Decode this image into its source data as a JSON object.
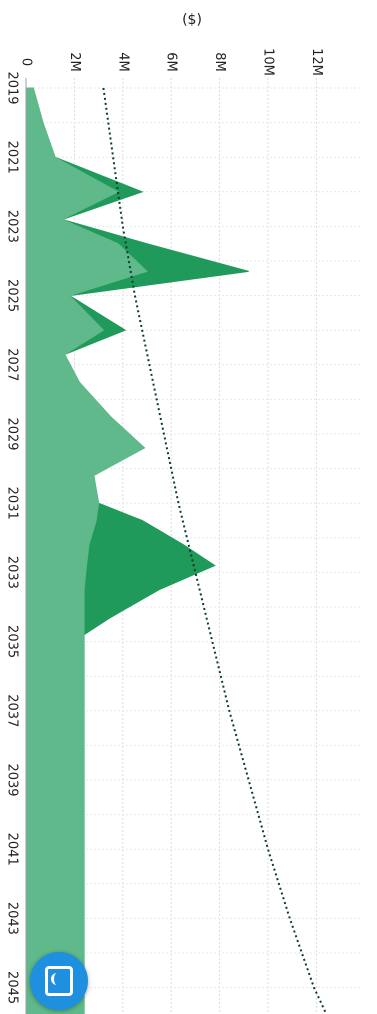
{
  "chart_data": {
    "type": "area",
    "orientation": "rotated-90",
    "ylabel": "($)",
    "x_ticks": [
      "2019",
      "2021",
      "2023",
      "2025",
      "2027",
      "2029",
      "2031",
      "2033",
      "2035",
      "2037",
      "2039",
      "2041",
      "2043",
      "2045"
    ],
    "y_ticks": [
      "0",
      "2M",
      "4M",
      "6M",
      "8M",
      "10M",
      "12M"
    ],
    "xlim": [
      2019,
      2046.5
    ],
    "ylim": [
      0,
      13000000
    ],
    "grid": true,
    "series": [
      {
        "kind": "area-dark",
        "color": "#1f9a5a",
        "x": [
          2019,
          2020,
          2021,
          2022,
          2022.8,
          2023.5,
          2024.3,
          2025,
          2026,
          2026.7,
          2027.5,
          2028.5,
          2029.4,
          2030.2,
          2031,
          2031.5,
          2032.2,
          2032.8,
          2033.5,
          2034.3,
          2034.8,
          2035.5,
          2046.5
        ],
        "y": [
          300000,
          700000,
          1200000,
          4800000,
          1500000,
          5000000,
          9200000,
          1800000,
          4100000,
          1600000,
          2200000,
          3400000,
          4700000,
          2800000,
          3000000,
          4800000,
          6500000,
          7800000,
          5500000,
          3500000,
          2400000,
          2400000,
          2400000
        ]
      },
      {
        "kind": "area-light",
        "color": "#5fb98a",
        "x": [
          2019,
          2020,
          2021,
          2022,
          2022.8,
          2023.5,
          2024.3,
          2025,
          2026,
          2026.7,
          2027.5,
          2028.5,
          2029.4,
          2030.2,
          2031,
          2031.5,
          2032.2,
          2032.8,
          2033.5,
          2034.3,
          2034.8,
          2035.5,
          2046.5
        ],
        "y": [
          300000,
          700000,
          1200000,
          3800000,
          1500000,
          3800000,
          5000000,
          1800000,
          3200000,
          1600000,
          2200000,
          3500000,
          4900000,
          2800000,
          3000000,
          2900000,
          2600000,
          2500000,
          2400000,
          2400000,
          2400000,
          2400000,
          2400000
        ]
      },
      {
        "kind": "trend-line",
        "style": "dotted",
        "color": "#0d3b2a",
        "x": [
          2019,
          2021,
          2023,
          2025,
          2027,
          2029,
          2031,
          2033,
          2035,
          2037,
          2039,
          2041,
          2043,
          2045,
          2046.5
        ],
        "y": [
          3200000,
          3600000,
          4000000,
          4500000,
          5100000,
          5700000,
          6300000,
          7000000,
          7700000,
          8400000,
          9200000,
          10000000,
          10900000,
          11900000,
          12900000
        ]
      }
    ]
  },
  "fab": {
    "icon": "chat-bubble-icon"
  }
}
